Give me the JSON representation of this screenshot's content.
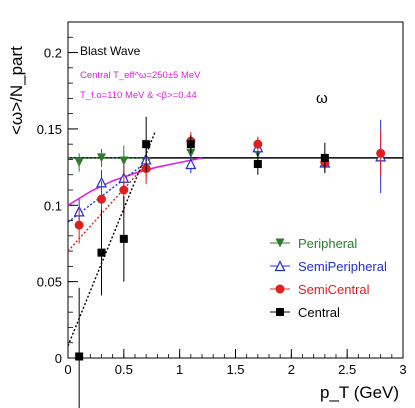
{
  "chart_data": {
    "type": "scatter",
    "xlabel": "p_T (GeV)",
    "ylabel": "<ω>/N_part",
    "xlim": [
      0,
      3
    ],
    "ylim": [
      0,
      0.22
    ],
    "xticks": [
      0,
      0.5,
      1,
      1.5,
      2,
      2.5,
      3
    ],
    "xtick_labels": [
      "0",
      "0.5",
      "1",
      "1.5",
      "2",
      "2.5",
      "3"
    ],
    "yticks": [
      0,
      0.05,
      0.1,
      0.15,
      0.2
    ],
    "ytick_labels": [
      "0",
      "0.05",
      "0.1",
      "0.15",
      "0.2"
    ],
    "grid": false,
    "legend_position": "bottom-right",
    "annotations": {
      "model": "Blast Wave",
      "param1": "Central T_eff^ω=250±5 MeV",
      "param2": "T_f.o=110 MeV & <β>=0.44",
      "particle": "ω"
    },
    "reference_line": {
      "y": 0.131,
      "color": "#000000"
    },
    "series": [
      {
        "name": "Peripheral",
        "color": "#2e7d2e",
        "marker": "triangle-down",
        "x": [
          0.1,
          0.3,
          0.5,
          0.7,
          1.1,
          1.7,
          2.3
        ],
        "y": [
          0.128,
          0.131,
          0.129,
          0.128,
          0.134,
          0.134,
          0.128
        ],
        "err": [
          0.006,
          0.006,
          0.01,
          0.01,
          0.005,
          0.004,
          0.004
        ],
        "fit": {
          "x1": 0,
          "y1": 0.131,
          "x2": 0.75,
          "y2": 0.131
        }
      },
      {
        "name": "SemiPeripheral",
        "color": "#1f2fd6",
        "marker": "triangle-up-open",
        "x": [
          0.1,
          0.3,
          0.5,
          0.7,
          1.1,
          1.7,
          2.3,
          2.8
        ],
        "y": [
          0.096,
          0.115,
          0.118,
          0.13,
          0.127,
          0.138,
          0.128,
          0.132
        ],
        "err": [
          0.008,
          0.008,
          0.008,
          0.008,
          0.006,
          0.006,
          0.006,
          0.024
        ],
        "fit": {
          "x1": 0,
          "y1": 0.089,
          "x2": 0.75,
          "y2": 0.131
        }
      },
      {
        "name": "SemiCentral",
        "color": "#e02020",
        "marker": "circle",
        "x": [
          0.1,
          0.3,
          0.5,
          0.7,
          1.1,
          1.7,
          2.3,
          2.8
        ],
        "y": [
          0.087,
          0.104,
          0.11,
          0.124,
          0.142,
          0.14,
          0.128,
          0.134
        ],
        "err": [
          0.012,
          0.012,
          0.016,
          0.01,
          0.006,
          0.005,
          0.004,
          0.015
        ],
        "fit": {
          "x1": 0,
          "y1": 0.07,
          "x2": 0.75,
          "y2": 0.131
        }
      },
      {
        "name": "Central",
        "color": "#000000",
        "marker": "square",
        "x": [
          0.1,
          0.3,
          0.5,
          0.7,
          1.1,
          1.7,
          2.3
        ],
        "y": [
          0.001,
          0.069,
          0.078,
          0.14,
          0.14,
          0.127,
          0.131
        ],
        "err": [
          0.045,
          0.028,
          0.028,
          0.018,
          0.006,
          0.007,
          0.01
        ],
        "fit": {
          "x1": 0,
          "y1": 0.008,
          "x2": 0.78,
          "y2": 0.148
        }
      }
    ],
    "blast_wave_curve": {
      "color": "#e020e0",
      "x": [
        0,
        0.2,
        0.4,
        0.6,
        0.8,
        1.0,
        1.2
      ],
      "y": [
        0.1,
        0.109,
        0.116,
        0.121,
        0.125,
        0.128,
        0.131
      ]
    }
  }
}
